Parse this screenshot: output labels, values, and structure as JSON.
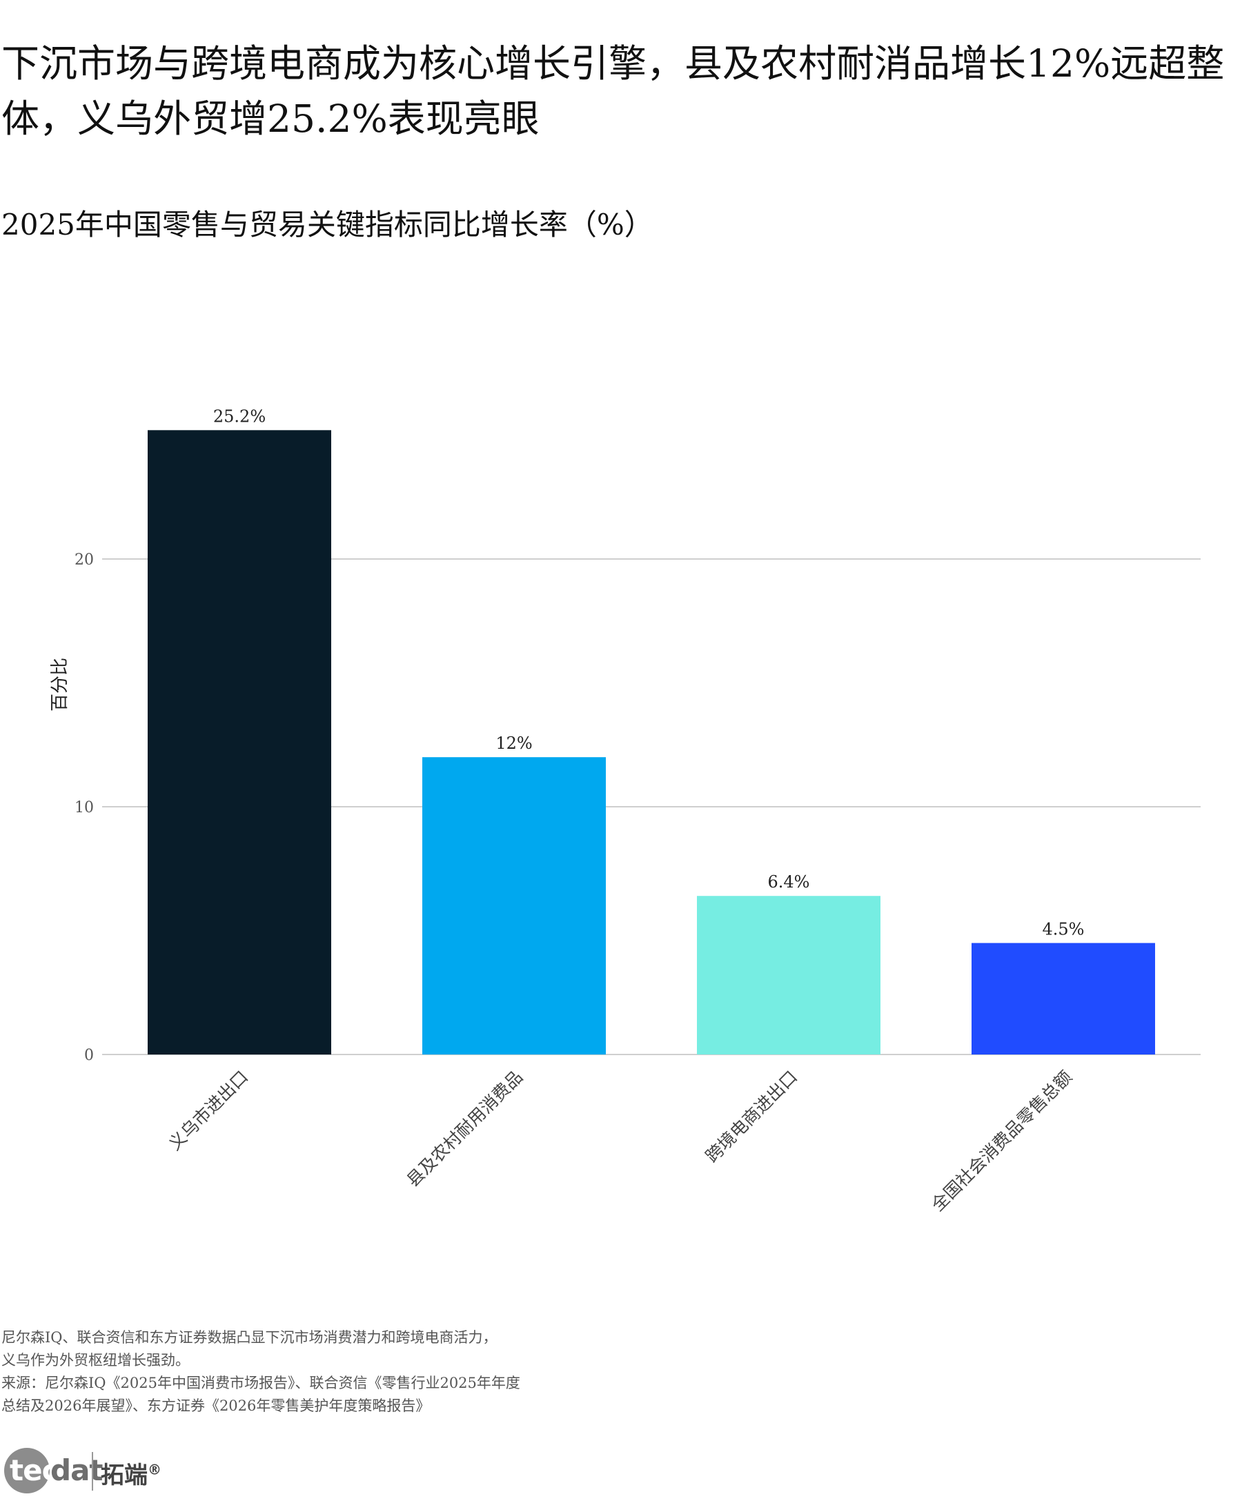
{
  "headline": "下沉市场与跨境电商成为核心增长引擎，县及农村耐消品增长12%远超整体，义乌外贸增25.2%表现亮眼",
  "chart_data": {
    "type": "bar",
    "title": "2025年中国零售与贸易关键指标同比增长率（%）",
    "ylabel": "百分比",
    "xlabel": "",
    "categories": [
      "义乌市进出口",
      "县及农村耐用消费品",
      "跨境电商进出口",
      "全国社会消费品零售总额"
    ],
    "values": [
      25.2,
      12,
      6.4,
      4.5
    ],
    "value_labels": [
      "25.2%",
      "12%",
      "6.4%",
      "4.5%"
    ],
    "colors": [
      "#081c29",
      "#00a8ef",
      "#76ede2",
      "#204cff"
    ],
    "ylim": [
      0,
      27.5
    ],
    "yticks": [
      0,
      10,
      20
    ],
    "ytick_labels": [
      "0",
      "10",
      "20"
    ],
    "grid": true,
    "legend": "none"
  },
  "note_lines": [
    "尼尔森IQ、联合资信和东方证券数据凸显下沉市场消费潜力和跨境电商活力，",
    "义乌作为外贸枢纽增长强劲。",
    "来源：尼尔森IQ《2025年中国消费市场报告》、联合资信《零售行业2025年年度",
    "总结及2026年展望》、东方证券《2026年零售美护年度策略报告》"
  ],
  "logo": {
    "tec": "tec",
    "dat": "dat",
    "cn": "拓端",
    "registered": "®"
  }
}
